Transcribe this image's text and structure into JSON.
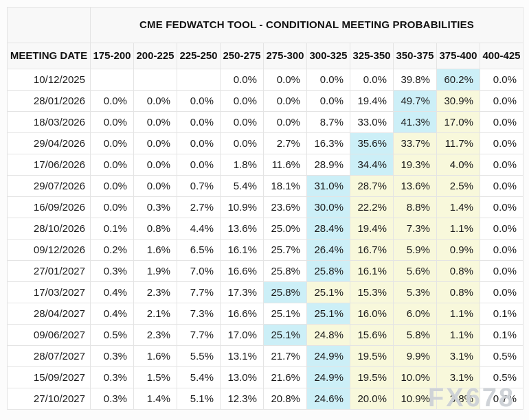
{
  "title": "CME FEDWATCH TOOL - CONDITIONAL MEETING PROBABILITIES",
  "watermark": "FX678",
  "colors": {
    "highlight_max": "#cceff7",
    "highlight_secondary": "#f8f8db",
    "header_bg": "#f8f8f8",
    "border": "#e4e4e4"
  },
  "chart_data": {
    "type": "table",
    "title": "CME FEDWATCH TOOL - CONDITIONAL MEETING PROBABILITIES",
    "columns": [
      "MEETING DATE",
      "175-200",
      "200-225",
      "225-250",
      "250-275",
      "275-300",
      "300-325",
      "325-350",
      "350-375",
      "375-400",
      "400-425"
    ],
    "rows": [
      [
        "10/12/2025",
        "",
        "",
        "",
        "0.0%",
        "0.0%",
        "0.0%",
        "0.0%",
        "39.8%",
        "60.2%",
        "0.0%"
      ],
      [
        "28/01/2026",
        "0.0%",
        "0.0%",
        "0.0%",
        "0.0%",
        "0.0%",
        "0.0%",
        "19.4%",
        "49.7%",
        "30.9%",
        "0.0%"
      ],
      [
        "18/03/2026",
        "0.0%",
        "0.0%",
        "0.0%",
        "0.0%",
        "0.0%",
        "8.7%",
        "33.0%",
        "41.3%",
        "17.0%",
        "0.0%"
      ],
      [
        "29/04/2026",
        "0.0%",
        "0.0%",
        "0.0%",
        "0.0%",
        "2.7%",
        "16.3%",
        "35.6%",
        "33.7%",
        "11.7%",
        "0.0%"
      ],
      [
        "17/06/2026",
        "0.0%",
        "0.0%",
        "0.0%",
        "1.8%",
        "11.6%",
        "28.9%",
        "34.4%",
        "19.3%",
        "4.0%",
        "0.0%"
      ],
      [
        "29/07/2026",
        "0.0%",
        "0.0%",
        "0.7%",
        "5.4%",
        "18.1%",
        "31.0%",
        "28.7%",
        "13.6%",
        "2.5%",
        "0.0%"
      ],
      [
        "16/09/2026",
        "0.0%",
        "0.3%",
        "2.7%",
        "10.9%",
        "23.6%",
        "30.0%",
        "22.2%",
        "8.8%",
        "1.4%",
        "0.0%"
      ],
      [
        "28/10/2026",
        "0.1%",
        "0.8%",
        "4.4%",
        "13.6%",
        "25.0%",
        "28.4%",
        "19.4%",
        "7.3%",
        "1.1%",
        "0.0%"
      ],
      [
        "09/12/2026",
        "0.2%",
        "1.6%",
        "6.5%",
        "16.1%",
        "25.7%",
        "26.4%",
        "16.7%",
        "5.9%",
        "0.9%",
        "0.0%"
      ],
      [
        "27/01/2027",
        "0.3%",
        "1.9%",
        "7.0%",
        "16.6%",
        "25.8%",
        "25.8%",
        "16.1%",
        "5.6%",
        "0.8%",
        "0.0%"
      ],
      [
        "17/03/2027",
        "0.4%",
        "2.3%",
        "7.7%",
        "17.3%",
        "25.8%",
        "25.1%",
        "15.3%",
        "5.3%",
        "0.8%",
        "0.0%"
      ],
      [
        "28/04/2027",
        "0.4%",
        "2.1%",
        "7.3%",
        "16.6%",
        "25.1%",
        "25.1%",
        "16.0%",
        "6.0%",
        "1.1%",
        "0.1%"
      ],
      [
        "09/06/2027",
        "0.5%",
        "2.3%",
        "7.7%",
        "17.0%",
        "25.1%",
        "24.8%",
        "15.6%",
        "5.8%",
        "1.1%",
        "0.1%"
      ],
      [
        "28/07/2027",
        "0.3%",
        "1.6%",
        "5.5%",
        "13.1%",
        "21.7%",
        "24.9%",
        "19.5%",
        "9.9%",
        "3.1%",
        "0.5%"
      ],
      [
        "15/09/2027",
        "0.3%",
        "1.5%",
        "5.4%",
        "13.0%",
        "21.6%",
        "24.9%",
        "19.5%",
        "10.0%",
        "3.1%",
        "0.5%"
      ],
      [
        "27/10/2027",
        "0.3%",
        "1.4%",
        "5.1%",
        "12.3%",
        "20.8%",
        "24.6%",
        "20.0%",
        "10.9%",
        "3.8%",
        "0.7%"
      ]
    ]
  },
  "table": {
    "date_header": "MEETING DATE",
    "bin_headers": [
      "175-200",
      "200-225",
      "225-250",
      "250-275",
      "275-300",
      "300-325",
      "325-350",
      "350-375",
      "375-400",
      "400-425"
    ],
    "rows": [
      {
        "date": "10/12/2025",
        "values": [
          "",
          "",
          "",
          "0.0%",
          "0.0%",
          "0.0%",
          "0.0%",
          "39.8%",
          "60.2%",
          "0.0%"
        ],
        "hl": [
          "",
          "",
          "",
          "",
          "",
          "",
          "",
          "",
          "max",
          ""
        ]
      },
      {
        "date": "28/01/2026",
        "values": [
          "0.0%",
          "0.0%",
          "0.0%",
          "0.0%",
          "0.0%",
          "0.0%",
          "19.4%",
          "49.7%",
          "30.9%",
          "0.0%"
        ],
        "hl": [
          "",
          "",
          "",
          "",
          "",
          "",
          "",
          "max",
          "hi",
          ""
        ]
      },
      {
        "date": "18/03/2026",
        "values": [
          "0.0%",
          "0.0%",
          "0.0%",
          "0.0%",
          "0.0%",
          "8.7%",
          "33.0%",
          "41.3%",
          "17.0%",
          "0.0%"
        ],
        "hl": [
          "",
          "",
          "",
          "",
          "",
          "",
          "",
          "max",
          "hi",
          ""
        ]
      },
      {
        "date": "29/04/2026",
        "values": [
          "0.0%",
          "0.0%",
          "0.0%",
          "0.0%",
          "2.7%",
          "16.3%",
          "35.6%",
          "33.7%",
          "11.7%",
          "0.0%"
        ],
        "hl": [
          "",
          "",
          "",
          "",
          "",
          "",
          "max",
          "hi",
          "hi",
          ""
        ]
      },
      {
        "date": "17/06/2026",
        "values": [
          "0.0%",
          "0.0%",
          "0.0%",
          "1.8%",
          "11.6%",
          "28.9%",
          "34.4%",
          "19.3%",
          "4.0%",
          "0.0%"
        ],
        "hl": [
          "",
          "",
          "",
          "",
          "",
          "",
          "max",
          "hi",
          "hi",
          ""
        ]
      },
      {
        "date": "29/07/2026",
        "values": [
          "0.0%",
          "0.0%",
          "0.7%",
          "5.4%",
          "18.1%",
          "31.0%",
          "28.7%",
          "13.6%",
          "2.5%",
          "0.0%"
        ],
        "hl": [
          "",
          "",
          "",
          "",
          "",
          "max",
          "hi",
          "hi",
          "hi",
          ""
        ]
      },
      {
        "date": "16/09/2026",
        "values": [
          "0.0%",
          "0.3%",
          "2.7%",
          "10.9%",
          "23.6%",
          "30.0%",
          "22.2%",
          "8.8%",
          "1.4%",
          "0.0%"
        ],
        "hl": [
          "",
          "",
          "",
          "",
          "",
          "max",
          "hi",
          "hi",
          "hi",
          ""
        ]
      },
      {
        "date": "28/10/2026",
        "values": [
          "0.1%",
          "0.8%",
          "4.4%",
          "13.6%",
          "25.0%",
          "28.4%",
          "19.4%",
          "7.3%",
          "1.1%",
          "0.0%"
        ],
        "hl": [
          "",
          "",
          "",
          "",
          "",
          "max",
          "hi",
          "hi",
          "hi",
          ""
        ]
      },
      {
        "date": "09/12/2026",
        "values": [
          "0.2%",
          "1.6%",
          "6.5%",
          "16.1%",
          "25.7%",
          "26.4%",
          "16.7%",
          "5.9%",
          "0.9%",
          "0.0%"
        ],
        "hl": [
          "",
          "",
          "",
          "",
          "",
          "max",
          "hi",
          "hi",
          "hi",
          ""
        ]
      },
      {
        "date": "27/01/2027",
        "values": [
          "0.3%",
          "1.9%",
          "7.0%",
          "16.6%",
          "25.8%",
          "25.8%",
          "16.1%",
          "5.6%",
          "0.8%",
          "0.0%"
        ],
        "hl": [
          "",
          "",
          "",
          "",
          "",
          "max",
          "hi",
          "hi",
          "hi",
          ""
        ]
      },
      {
        "date": "17/03/2027",
        "values": [
          "0.4%",
          "2.3%",
          "7.7%",
          "17.3%",
          "25.8%",
          "25.1%",
          "15.3%",
          "5.3%",
          "0.8%",
          "0.0%"
        ],
        "hl": [
          "",
          "",
          "",
          "",
          "max",
          "hi",
          "hi",
          "hi",
          "hi",
          ""
        ]
      },
      {
        "date": "28/04/2027",
        "values": [
          "0.4%",
          "2.1%",
          "7.3%",
          "16.6%",
          "25.1%",
          "25.1%",
          "16.0%",
          "6.0%",
          "1.1%",
          "0.1%"
        ],
        "hl": [
          "",
          "",
          "",
          "",
          "",
          "max",
          "hi",
          "hi",
          "hi",
          ""
        ]
      },
      {
        "date": "09/06/2027",
        "values": [
          "0.5%",
          "2.3%",
          "7.7%",
          "17.0%",
          "25.1%",
          "24.8%",
          "15.6%",
          "5.8%",
          "1.1%",
          "0.1%"
        ],
        "hl": [
          "",
          "",
          "",
          "",
          "max",
          "hi",
          "hi",
          "hi",
          "hi",
          ""
        ]
      },
      {
        "date": "28/07/2027",
        "values": [
          "0.3%",
          "1.6%",
          "5.5%",
          "13.1%",
          "21.7%",
          "24.9%",
          "19.5%",
          "9.9%",
          "3.1%",
          "0.5%"
        ],
        "hl": [
          "",
          "",
          "",
          "",
          "",
          "max",
          "hi",
          "hi",
          "hi",
          ""
        ]
      },
      {
        "date": "15/09/2027",
        "values": [
          "0.3%",
          "1.5%",
          "5.4%",
          "13.0%",
          "21.6%",
          "24.9%",
          "19.5%",
          "10.0%",
          "3.1%",
          "0.5%"
        ],
        "hl": [
          "",
          "",
          "",
          "",
          "",
          "max",
          "hi",
          "hi",
          "hi",
          ""
        ]
      },
      {
        "date": "27/10/2027",
        "values": [
          "0.3%",
          "1.4%",
          "5.1%",
          "12.3%",
          "20.8%",
          "24.6%",
          "20.0%",
          "10.9%",
          "3.8%",
          "0.7%"
        ],
        "hl": [
          "",
          "",
          "",
          "",
          "",
          "max",
          "hi",
          "hi",
          "hi",
          ""
        ]
      }
    ]
  }
}
